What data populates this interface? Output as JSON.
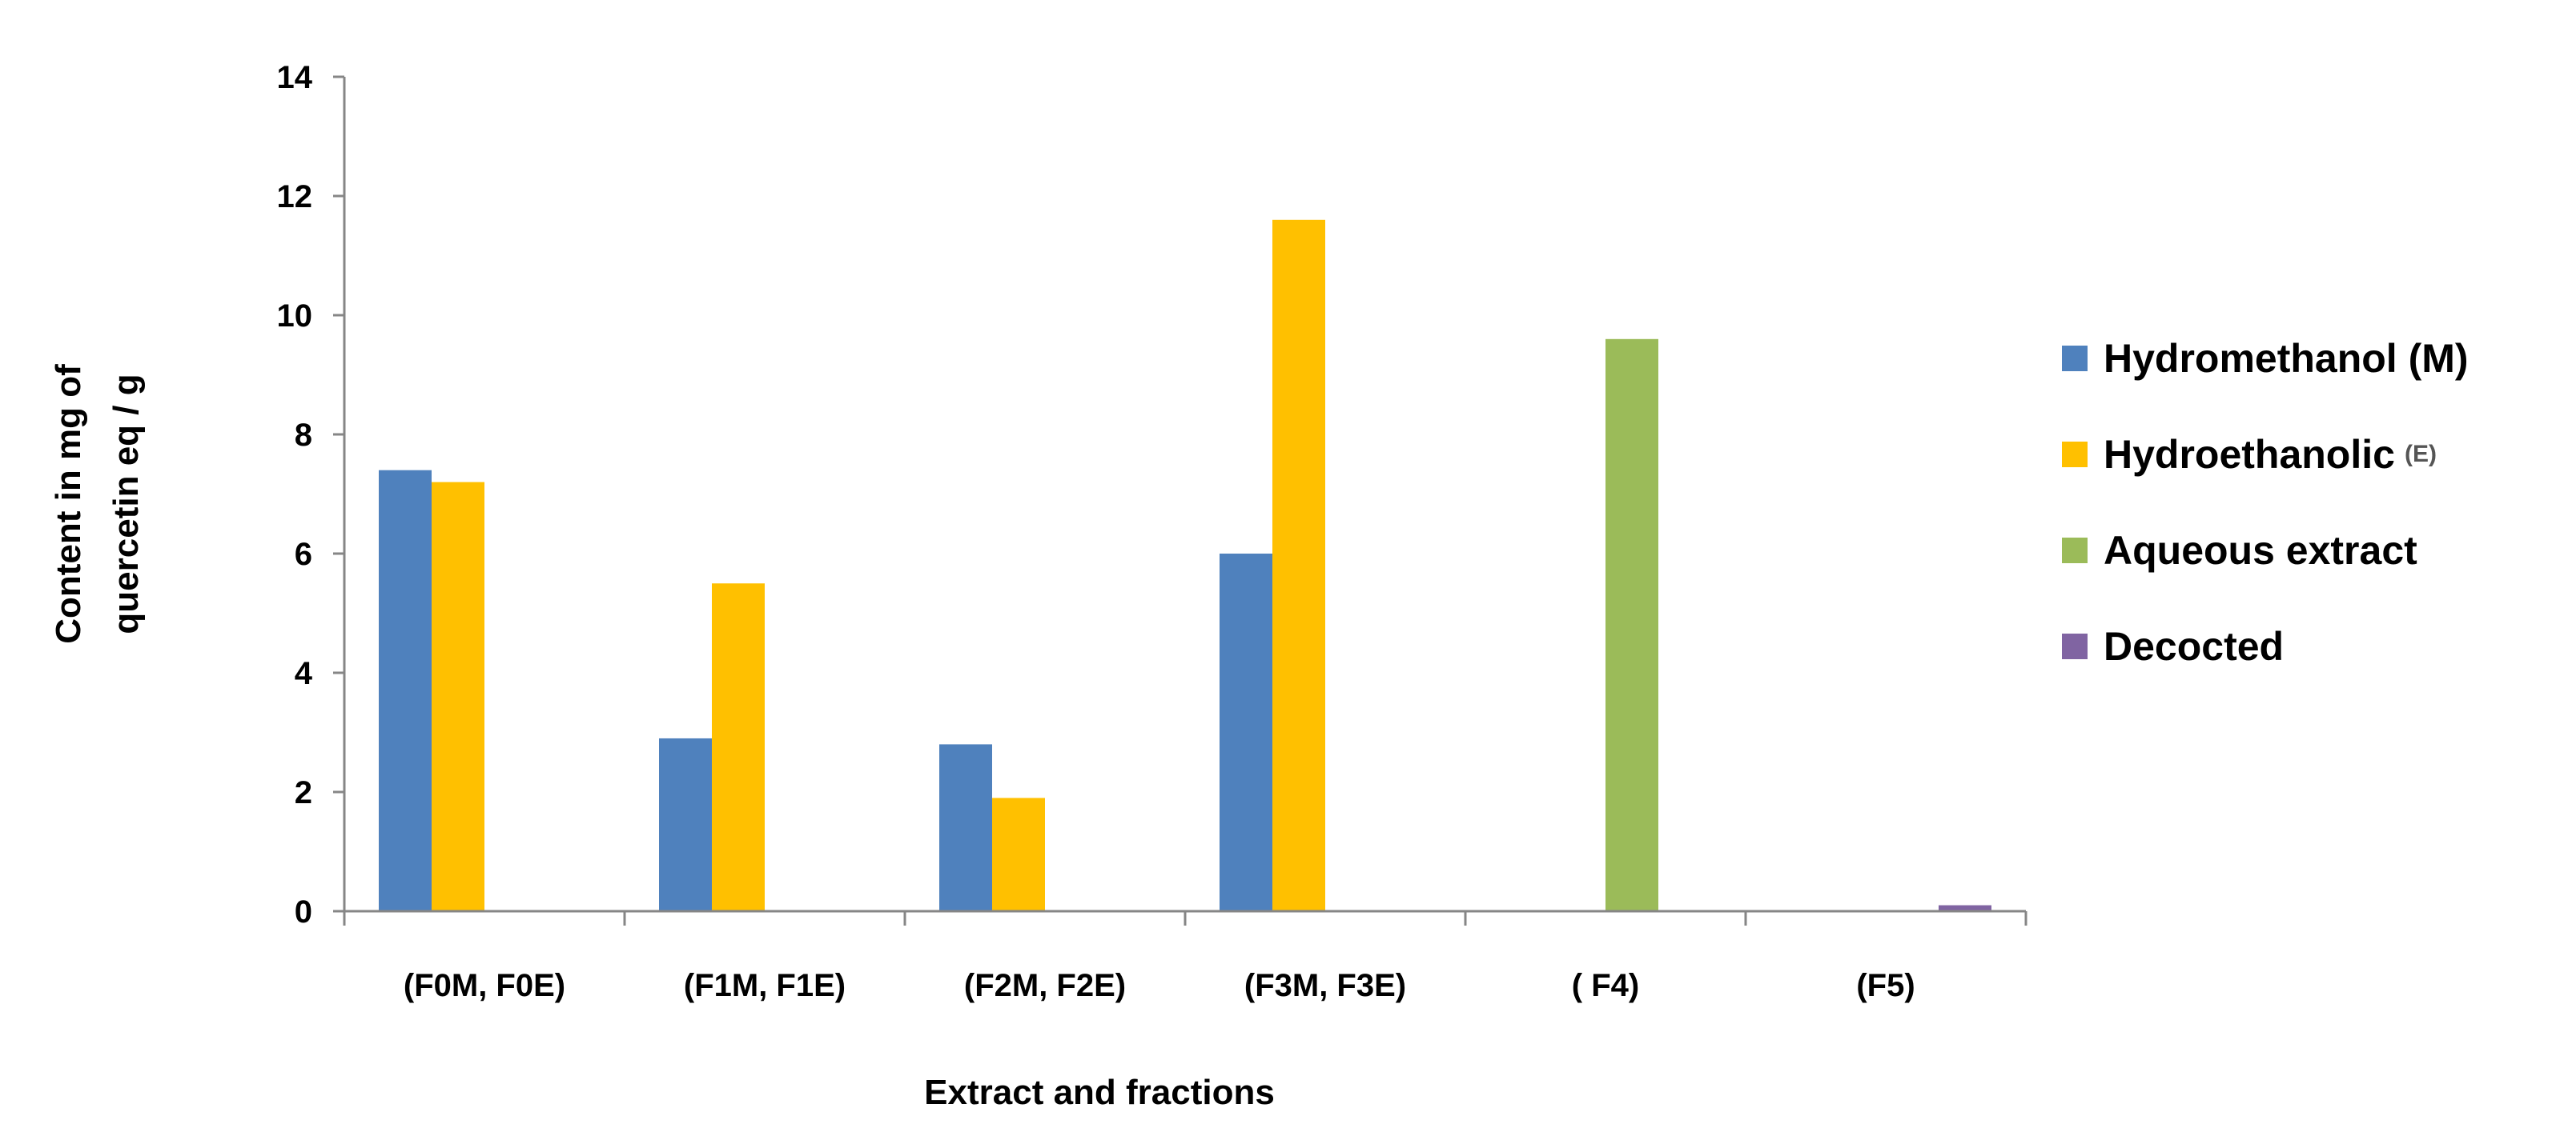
{
  "chart_data": {
    "type": "bar",
    "title": "",
    "xlabel": "Extract and fractions",
    "ylabel_lines": [
      "Content in mg of",
      "quercetin eq / g"
    ],
    "ylim": [
      0,
      14
    ],
    "yticks": [
      0,
      2,
      4,
      6,
      8,
      10,
      12,
      14
    ],
    "grid": false,
    "legend_position": "right",
    "categories": [
      "(F0M, F0E)",
      "(F1M, F1E)",
      "(F2M, F2E)",
      "(F3M, F3E)",
      "( F4)",
      "(F5)"
    ],
    "series": [
      {
        "name": "Hydromethanol (M)",
        "name_suffix": "",
        "color": "#4F81BD",
        "values": [
          7.4,
          2.9,
          2.8,
          6.0,
          null,
          null
        ]
      },
      {
        "name": "Hydroethanolic",
        "name_suffix": "(E)",
        "color": "#FFC000",
        "values": [
          7.2,
          5.5,
          1.9,
          11.6,
          null,
          null
        ]
      },
      {
        "name": "Aqueous extract",
        "name_suffix": "",
        "color": "#9BBB59",
        "values": [
          null,
          null,
          null,
          null,
          9.6,
          null
        ]
      },
      {
        "name": "Decocted",
        "name_suffix": "",
        "color": "#8064A2",
        "values": [
          null,
          null,
          null,
          null,
          null,
          0.1
        ]
      }
    ]
  }
}
